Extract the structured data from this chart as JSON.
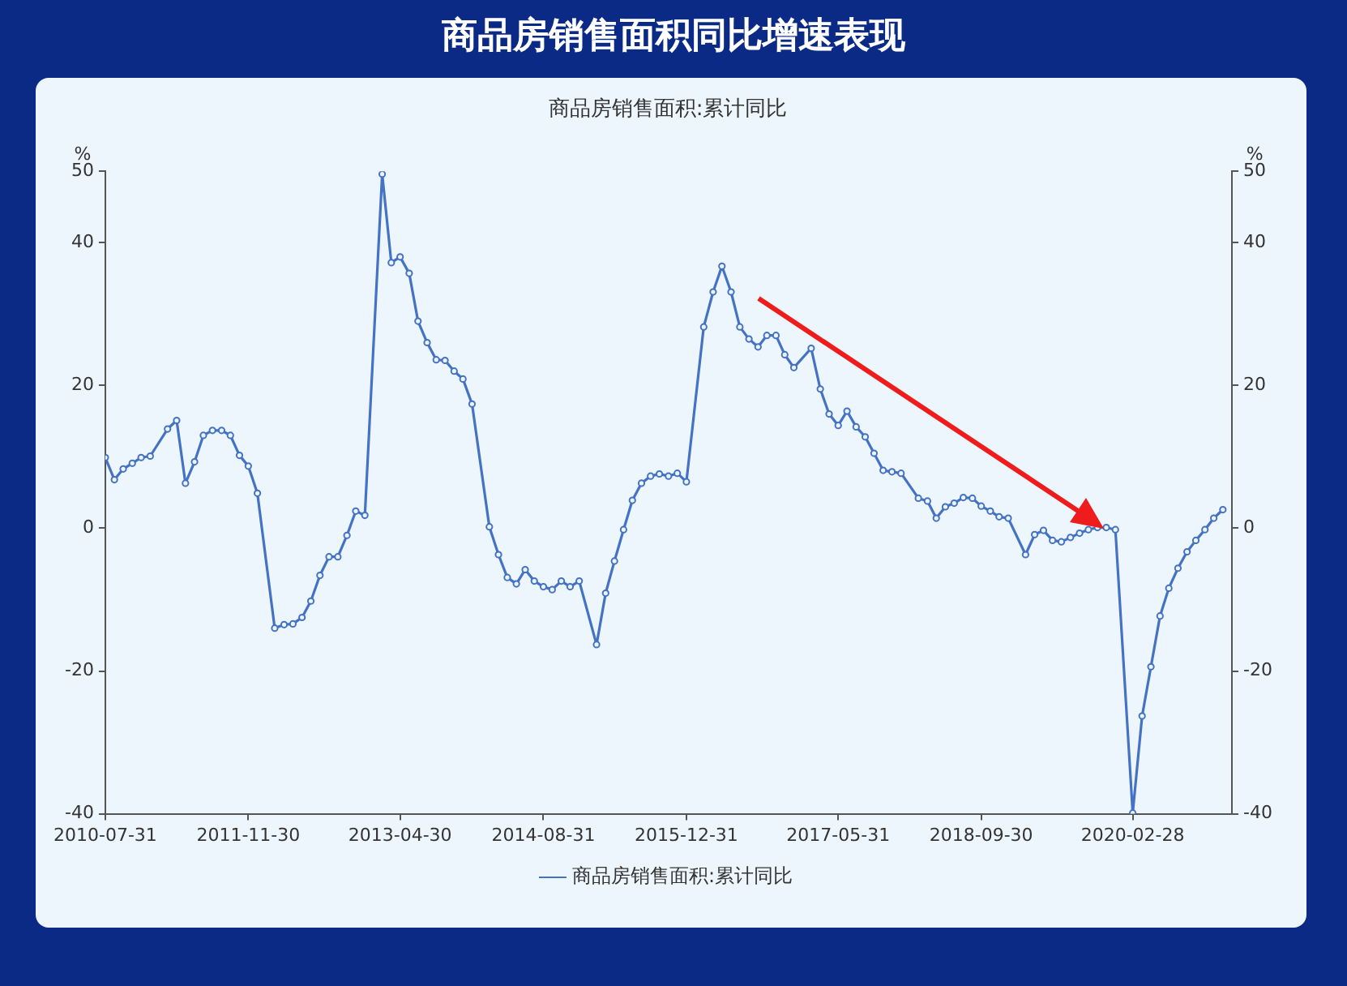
{
  "chart_data": {
    "type": "line",
    "title": "商品房销售面积同比增速表现",
    "subtitle": "商品房销售面积:累计同比",
    "ylabel": "%",
    "y2label": "%",
    "x": [
      "2010-07-31",
      "2010-08-31",
      "2010-09-30",
      "2010-10-31",
      "2010-11-30",
      "2010-12-31",
      "2011-02-28",
      "2011-03-31",
      "2011-04-30",
      "2011-05-31",
      "2011-06-30",
      "2011-07-31",
      "2011-08-31",
      "2011-09-30",
      "2011-10-31",
      "2011-11-30",
      "2011-12-31",
      "2012-02-28",
      "2012-03-31",
      "2012-04-30",
      "2012-05-31",
      "2012-06-30",
      "2012-07-31",
      "2012-08-31",
      "2012-09-30",
      "2012-10-31",
      "2012-11-30",
      "2012-12-31",
      "2013-02-28",
      "2013-03-31",
      "2013-04-30",
      "2013-05-31",
      "2013-06-30",
      "2013-07-31",
      "2013-08-31",
      "2013-09-30",
      "2013-10-31",
      "2013-11-30",
      "2013-12-31",
      "2014-02-28",
      "2014-03-31",
      "2014-04-30",
      "2014-05-31",
      "2014-06-30",
      "2014-07-31",
      "2014-08-31",
      "2014-09-30",
      "2014-10-31",
      "2014-11-30",
      "2014-12-31",
      "2015-02-28",
      "2015-03-31",
      "2015-04-30",
      "2015-05-31",
      "2015-06-30",
      "2015-07-31",
      "2015-08-31",
      "2015-09-30",
      "2015-10-31",
      "2015-11-30",
      "2015-12-31",
      "2016-02-28",
      "2016-03-31",
      "2016-04-30",
      "2016-05-31",
      "2016-06-30",
      "2016-07-31",
      "2016-08-31",
      "2016-09-30",
      "2016-10-31",
      "2016-11-30",
      "2016-12-31",
      "2017-02-28",
      "2017-03-31",
      "2017-04-30",
      "2017-05-31",
      "2017-06-30",
      "2017-07-31",
      "2017-08-31",
      "2017-09-30",
      "2017-10-31",
      "2017-11-30",
      "2017-12-31",
      "2018-02-28",
      "2018-03-31",
      "2018-04-30",
      "2018-05-31",
      "2018-06-30",
      "2018-07-31",
      "2018-08-31",
      "2018-09-30",
      "2018-10-31",
      "2018-11-30",
      "2018-12-31",
      "2019-02-28",
      "2019-03-31",
      "2019-04-30",
      "2019-05-31",
      "2019-06-30",
      "2019-07-31",
      "2019-08-31",
      "2019-09-30",
      "2019-10-31",
      "2019-11-30",
      "2019-12-31",
      "2020-02-28",
      "2020-03-31",
      "2020-04-30",
      "2020-05-31",
      "2020-06-30",
      "2020-07-31",
      "2020-08-31",
      "2020-09-30",
      "2020-10-31",
      "2020-11-30",
      "2020-12-31"
    ],
    "series": [
      {
        "name": "商品房销售面积:累计同比",
        "color": "#4472c4",
        "values": [
          9.9,
          6.8,
          8.3,
          9.1,
          9.9,
          10.1,
          13.9,
          15.1,
          6.3,
          9.3,
          13.0,
          13.7,
          13.7,
          13.0,
          10.2,
          8.7,
          4.9,
          -14.0,
          -13.5,
          -13.4,
          -12.5,
          -10.2,
          -6.6,
          -4.0,
          -4.0,
          -1.0,
          2.4,
          1.8,
          49.6,
          37.2,
          38.0,
          35.7,
          29.0,
          26.0,
          23.6,
          23.5,
          22.0,
          20.9,
          17.4,
          0.2,
          -3.7,
          -6.9,
          -7.8,
          -5.8,
          -7.4,
          -8.2,
          -8.6,
          -7.4,
          -8.2,
          -7.4,
          -16.3,
          -9.1,
          -4.6,
          -0.2,
          3.9,
          6.3,
          7.3,
          7.6,
          7.3,
          7.7,
          6.5,
          28.2,
          33.1,
          36.7,
          33.1,
          28.2,
          26.5,
          25.4,
          27.0,
          27.0,
          24.3,
          22.5,
          25.2,
          19.5,
          16.0,
          14.4,
          16.4,
          14.2,
          12.8,
          10.5,
          8.1,
          7.9,
          7.7,
          4.2,
          3.8,
          1.4,
          3.0,
          3.5,
          4.3,
          4.2,
          3.1,
          2.4,
          1.6,
          1.4,
          -3.7,
          -0.9,
          -0.3,
          -1.7,
          -1.9,
          -1.3,
          -0.7,
          -0.2,
          0.1,
          0.1,
          -0.2,
          -39.9,
          -26.3,
          -19.4,
          -12.3,
          -8.4,
          -5.6,
          -3.3,
          -1.7,
          -0.2,
          1.4,
          2.6
        ]
      }
    ],
    "xlim": [
      "2010-07-31",
      "2021-01-31"
    ],
    "xticks": [
      "2010-07-31",
      "2011-11-30",
      "2013-04-30",
      "2014-08-31",
      "2015-12-31",
      "2017-05-31",
      "2018-09-30",
      "2020-02-28"
    ],
    "ylim": [
      -40,
      50
    ],
    "yticks": [
      -40,
      -20,
      0,
      20,
      40,
      50
    ],
    "y2lim": [
      -40,
      50
    ],
    "y2ticks": [
      -40,
      -20,
      0,
      20,
      40,
      50
    ],
    "grid": false,
    "legend": "bottom",
    "marker": "circle",
    "line_style": "solid"
  }
}
